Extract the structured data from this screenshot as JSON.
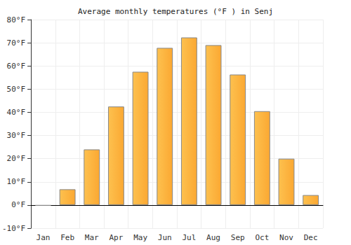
{
  "chart_data": {
    "type": "bar",
    "title": "Average monthly temperatures (°F ) in Senj",
    "categories": [
      "Jan",
      "Feb",
      "Mar",
      "Apr",
      "May",
      "Jun",
      "Jul",
      "Aug",
      "Sep",
      "Oct",
      "Nov",
      "Dec"
    ],
    "values": [
      -0.3,
      6.8,
      24,
      42.5,
      57.5,
      67.8,
      72.3,
      69,
      56.3,
      40.5,
      20,
      4.3
    ],
    "color": "#fba832",
    "ylim": [
      -10,
      80
    ],
    "yticks": [
      {
        "value": -10,
        "label": "-10°F"
      },
      {
        "value": 0,
        "label": "0°F"
      },
      {
        "value": 10,
        "label": "10°F"
      },
      {
        "value": 20,
        "label": "20°F"
      },
      {
        "value": 30,
        "label": "30°F"
      },
      {
        "value": 40,
        "label": "40°F"
      },
      {
        "value": 50,
        "label": "50°F"
      },
      {
        "value": 60,
        "label": "60°F"
      },
      {
        "value": 70,
        "label": "70°F"
      },
      {
        "value": 80,
        "label": "80°F"
      }
    ],
    "grid": true
  }
}
